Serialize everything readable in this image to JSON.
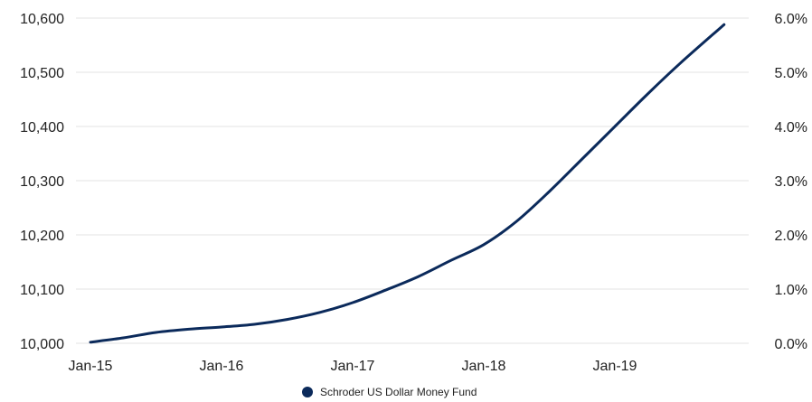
{
  "chart_data": {
    "type": "line",
    "title": "",
    "xlabel": "",
    "ylabel": "",
    "x_ticks": [
      "Jan-15",
      "Jan-16",
      "Jan-17",
      "Jan-18",
      "Jan-19"
    ],
    "y_ticks_left": [
      "10,000",
      "10,100",
      "10,200",
      "10,300",
      "10,400",
      "10,500",
      "10,600"
    ],
    "y_ticks_right": [
      "0.0%",
      "1.0%",
      "2.0%",
      "3.0%",
      "4.0%",
      "5.0%",
      "6.0%"
    ],
    "ylim": [
      10000,
      10600
    ],
    "ylim_right": [
      0,
      6
    ],
    "xlim": [
      "Jan-15",
      "Nov-19"
    ],
    "grid": true,
    "legend_position": "bottom",
    "series": [
      {
        "name": "Schroder US Dollar Money Fund",
        "color": "#0b2a5b",
        "points": [
          [
            "Jan-15",
            10002
          ],
          [
            "Apr-15",
            10010
          ],
          [
            "Jul-15",
            10020
          ],
          [
            "Oct-15",
            10026
          ],
          [
            "Jan-16",
            10030
          ],
          [
            "Apr-16",
            10035
          ],
          [
            "Jul-16",
            10044
          ],
          [
            "Oct-16",
            10057
          ],
          [
            "Jan-17",
            10075
          ],
          [
            "Apr-17",
            10098
          ],
          [
            "Jul-17",
            10123
          ],
          [
            "Oct-17",
            10153
          ],
          [
            "Jan-18",
            10182
          ],
          [
            "Apr-18",
            10225
          ],
          [
            "Jul-18",
            10280
          ],
          [
            "Oct-18",
            10340
          ],
          [
            "Jan-19",
            10400
          ],
          [
            "Apr-19",
            10460
          ],
          [
            "Jul-19",
            10517
          ],
          [
            "Nov-19",
            10588
          ]
        ]
      }
    ]
  }
}
